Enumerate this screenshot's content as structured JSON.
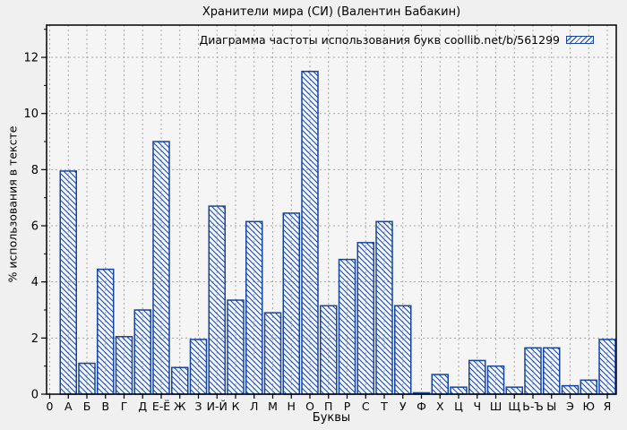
{
  "title": "Хранители мира (СИ) (Валентин Бабакин)",
  "colors": {
    "bar_outline": "#17459e",
    "grid": "#a6a6a6",
    "plot_background": "#f5f5f5",
    "figure_background": "#f0f0f0",
    "border": "#000000"
  },
  "chart_data": {
    "type": "bar",
    "title": "Хранители мира (СИ) (Валентин Бабакин)",
    "xlabel": "Буквы",
    "ylabel": "% использования в тексте",
    "legend": [
      "Диаграмма частоты использования букв coollib.net/b/561299"
    ],
    "legend_position": "top-right-inside",
    "grid": true,
    "bar_style": "diagonal-hatch",
    "categories": [
      "0",
      "А",
      "Б",
      "В",
      "Г",
      "Д",
      "Е-Ё",
      "Ж",
      "З",
      "И-Й",
      "К",
      "Л",
      "М",
      "Н",
      "О",
      "П",
      "Р",
      "С",
      "Т",
      "У",
      "Ф",
      "Х",
      "Ц",
      "Ч",
      "Ш",
      "Щ",
      "Ь-Ъ",
      "Ы",
      "Э",
      "Ю",
      "Я"
    ],
    "values": [
      0,
      7.95,
      1.1,
      4.45,
      2.05,
      3.0,
      9.0,
      0.95,
      1.95,
      6.7,
      3.35,
      6.15,
      2.9,
      6.45,
      11.5,
      3.15,
      4.8,
      5.4,
      6.15,
      3.15,
      0.05,
      0.7,
      0.25,
      1.2,
      1.0,
      0.25,
      1.65,
      1.65,
      0.3,
      0.5,
      1.95
    ],
    "yticks": [
      0,
      2,
      4,
      6,
      8,
      10,
      12
    ],
    "ylim": [
      0,
      13.15
    ]
  }
}
